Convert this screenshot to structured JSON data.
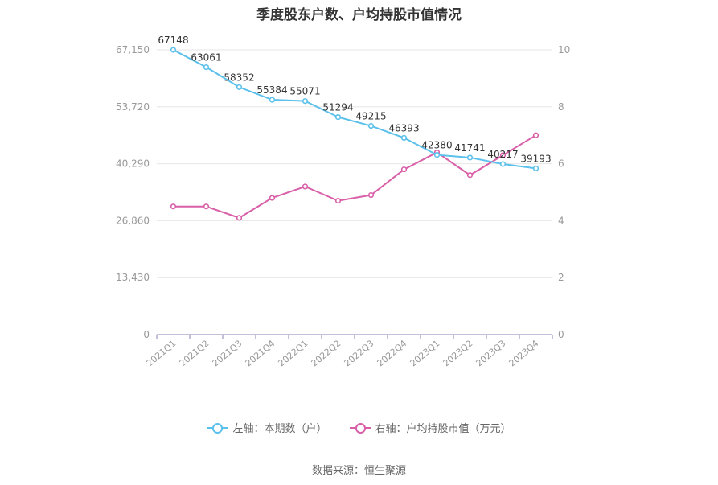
{
  "title": "季度股东户数、户均持股市值情况",
  "source": "数据来源：恒生聚源",
  "colors": {
    "left_series": "#5bc0eb",
    "right_series": "#d85fa8",
    "grid": "#e6e6e6",
    "axis": "#8b7fb5"
  },
  "chart_data": {
    "type": "line",
    "categories": [
      "2021Q1",
      "2021Q2",
      "2021Q3",
      "2021Q4",
      "2022Q1",
      "2022Q2",
      "2022Q3",
      "2022Q4",
      "2023Q1",
      "2023Q2",
      "2023Q3",
      "2023Q4"
    ],
    "left_axis": {
      "ticks": [
        "0",
        "13,430",
        "26,860",
        "40,290",
        "53,720",
        "67,150"
      ],
      "min": 0,
      "max": 67150
    },
    "right_axis": {
      "ticks": [
        "0",
        "2",
        "4",
        "6",
        "8",
        "10"
      ],
      "min": 0,
      "max": 10
    },
    "series": [
      {
        "name": "左轴：本期数（户）",
        "axis": "left",
        "values": [
          67148,
          63061,
          58352,
          55384,
          55071,
          51294,
          49215,
          46393,
          42380,
          41741,
          40217,
          39193
        ],
        "labels": [
          "67148",
          "63061",
          "58352",
          "55384",
          "55071",
          "51294",
          "49215",
          "46393",
          "42380",
          "41741",
          "40217",
          "39193"
        ]
      },
      {
        "name": "右轴：户均持股市值（万元）",
        "axis": "right",
        "values": [
          4.5,
          4.5,
          4.1,
          4.8,
          5.2,
          4.7,
          4.9,
          5.8,
          6.4,
          5.6,
          6.3,
          7.0
        ]
      }
    ],
    "legend_position": "bottom",
    "grid": true
  }
}
